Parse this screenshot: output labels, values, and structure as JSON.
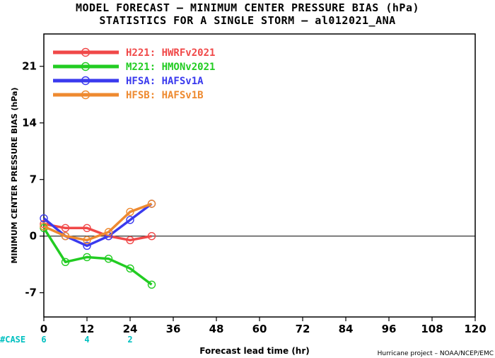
{
  "title_line1": "MODEL FORECAST – MINIMUM CENTER PRESSURE BIAS (hPa)",
  "title_line2": "STATISTICS FOR A SINGLE STORM – al012021_ANA",
  "credit": "Hurricane project – NOAA/NCEP/EMC",
  "case_label": "#CASE",
  "colors": {
    "case": "#00c0c0",
    "zero_line": "#000000"
  },
  "chart_data": {
    "type": "line",
    "xlabel": "Forecast lead time (hr)",
    "ylabel": "MINIMUM CENTER PRESSURE BIAS (hPa)",
    "xlim": [
      0,
      120
    ],
    "ylim": [
      -10,
      25
    ],
    "x_ticks": [
      0,
      12,
      24,
      36,
      48,
      60,
      72,
      84,
      96,
      108,
      120
    ],
    "y_ticks": [
      -7,
      0,
      7,
      14,
      21
    ],
    "grid": false,
    "legend_position": "top-left",
    "series": [
      {
        "name": "H221: HWRFv2021",
        "color": "#f04848",
        "x": [
          0,
          6,
          12,
          18,
          24,
          30
        ],
        "y": [
          1.5,
          1.0,
          1.0,
          0.0,
          -0.5,
          0.0
        ]
      },
      {
        "name": "M221: HMONv2021",
        "color": "#22cc22",
        "x": [
          0,
          6,
          12,
          18,
          24,
          30
        ],
        "y": [
          1.0,
          -3.2,
          -2.6,
          -2.8,
          -4.0,
          -6.0
        ]
      },
      {
        "name": "HFSA: HAFSv1A",
        "color": "#3a3aee",
        "x": [
          0,
          6,
          12,
          18,
          24,
          30
        ],
        "y": [
          2.2,
          0.0,
          -1.2,
          0.0,
          2.0,
          4.0
        ]
      },
      {
        "name": "HFSB: HAFSv1B",
        "color": "#ee8a30",
        "x": [
          0,
          6,
          12,
          18,
          24,
          30
        ],
        "y": [
          1.2,
          0.0,
          -0.5,
          0.5,
          3.0,
          4.0
        ]
      }
    ],
    "cases": {
      "x": [
        0,
        12,
        24
      ],
      "values": [
        6,
        4,
        2
      ]
    }
  }
}
